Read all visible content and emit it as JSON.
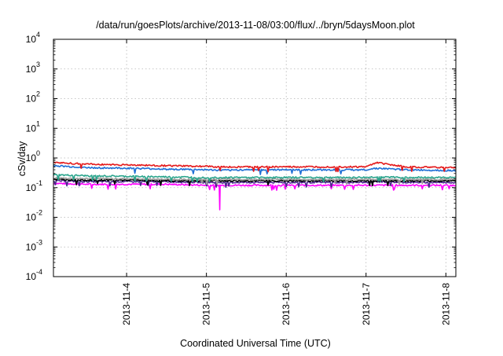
{
  "chart_data": {
    "type": "line",
    "title": "/data/run/goesPlots/archive/2013-11-08/03:00/flux/../bryn/5daysMoon.plot",
    "xlabel": "Coordinated Universal Time (UTC)",
    "ylabel": "cSv/day",
    "xlim": [
      "2013-11-03T02:00",
      "2013-11-08T03:00"
    ],
    "ylim": [
      0.0001,
      10000
    ],
    "yscale": "log",
    "grid": true,
    "legend": "none",
    "x_ticks": [
      "2013-11-4",
      "2013-11-5",
      "2013-11-6",
      "2013-11-7",
      "2013-11-8"
    ],
    "y_ticks": [
      {
        "base": "10",
        "exp": "-4"
      },
      {
        "base": "10",
        "exp": "-3"
      },
      {
        "base": "10",
        "exp": "-2"
      },
      {
        "base": "10",
        "exp": "-1"
      },
      {
        "base": "10",
        "exp": "0"
      },
      {
        "base": "10",
        "exp": "1"
      },
      {
        "base": "10",
        "exp": "2"
      },
      {
        "base": "10",
        "exp": "3"
      },
      {
        "base": "10",
        "exp": "4"
      }
    ],
    "x": [
      "2013-11-03T02:00",
      "2013-11-03T12:00",
      "2013-11-04T00:00",
      "2013-11-04T12:00",
      "2013-11-05T00:00",
      "2013-11-05T04:00",
      "2013-11-05T12:00",
      "2013-11-06T00:00",
      "2013-11-06T12:00",
      "2013-11-07T00:00",
      "2013-11-07T03:00",
      "2013-11-07T12:00",
      "2013-11-08T00:00",
      "2013-11-08T03:00"
    ],
    "series": [
      {
        "color": "#e41a1c",
        "values": [
          0.7,
          0.62,
          0.58,
          0.55,
          0.52,
          0.5,
          0.5,
          0.5,
          0.5,
          0.5,
          0.7,
          0.5,
          0.48,
          0.47
        ]
      },
      {
        "color": "#1f6fd6",
        "values": [
          0.55,
          0.47,
          0.45,
          0.42,
          0.4,
          0.38,
          0.4,
          0.4,
          0.4,
          0.4,
          0.45,
          0.4,
          0.38,
          0.38
        ]
      },
      {
        "color": "#2ca58d",
        "values": [
          0.27,
          0.25,
          0.24,
          0.23,
          0.22,
          0.22,
          0.22,
          0.22,
          0.22,
          0.22,
          0.23,
          0.22,
          0.22,
          0.22
        ]
      },
      {
        "color": "#9b9b9b",
        "values": [
          0.21,
          0.2,
          0.2,
          0.19,
          0.19,
          0.19,
          0.19,
          0.19,
          0.19,
          0.19,
          0.19,
          0.19,
          0.19,
          0.19
        ]
      },
      {
        "color": "#000000",
        "values": [
          0.19,
          0.18,
          0.18,
          0.17,
          0.17,
          0.17,
          0.17,
          0.17,
          0.17,
          0.17,
          0.17,
          0.17,
          0.17,
          0.17
        ]
      },
      {
        "color": "#4b2a8c",
        "values": [
          0.17,
          0.16,
          0.16,
          0.16,
          0.15,
          0.15,
          0.15,
          0.15,
          0.15,
          0.15,
          0.16,
          0.15,
          0.15,
          0.15
        ]
      },
      {
        "color": "#ff00ff",
        "values": [
          0.14,
          0.13,
          0.13,
          0.13,
          0.12,
          0.12,
          0.12,
          0.12,
          0.12,
          0.12,
          0.12,
          0.12,
          0.12,
          0.12
        ]
      }
    ],
    "annotations": [
      {
        "series_color": "#ff00ff",
        "x": "2013-11-05T04:00",
        "value": 0.018
      }
    ]
  }
}
